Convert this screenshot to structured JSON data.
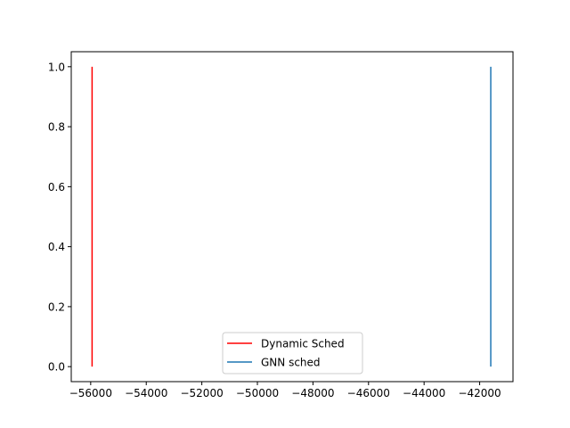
{
  "chart_data": {
    "type": "line",
    "title": "",
    "xlabel": "",
    "ylabel": "",
    "xlim": [
      -56700,
      -40800
    ],
    "ylim": [
      -0.05,
      1.05
    ],
    "xticks": [
      -56000,
      -54000,
      -52000,
      -50000,
      -48000,
      -46000,
      -44000,
      -42000
    ],
    "xtick_labels": [
      "−56000",
      "−54000",
      "−52000",
      "−50000",
      "−48000",
      "−46000",
      "−44000",
      "−42000"
    ],
    "yticks": [
      0.0,
      0.2,
      0.4,
      0.6,
      0.8,
      1.0
    ],
    "ytick_labels": [
      "0.0",
      "0.2",
      "0.4",
      "0.6",
      "0.8",
      "1.0"
    ],
    "grid": false,
    "legend_position": "bottom-center",
    "series": [
      {
        "name": "Dynamic Sched",
        "color": "#ff0000",
        "x": [
          -55950,
          -55950
        ],
        "y": [
          0,
          1
        ]
      },
      {
        "name": "GNN sched",
        "color": "#1f77b4",
        "x": [
          -41600,
          -41600
        ],
        "y": [
          0,
          1
        ]
      }
    ]
  }
}
